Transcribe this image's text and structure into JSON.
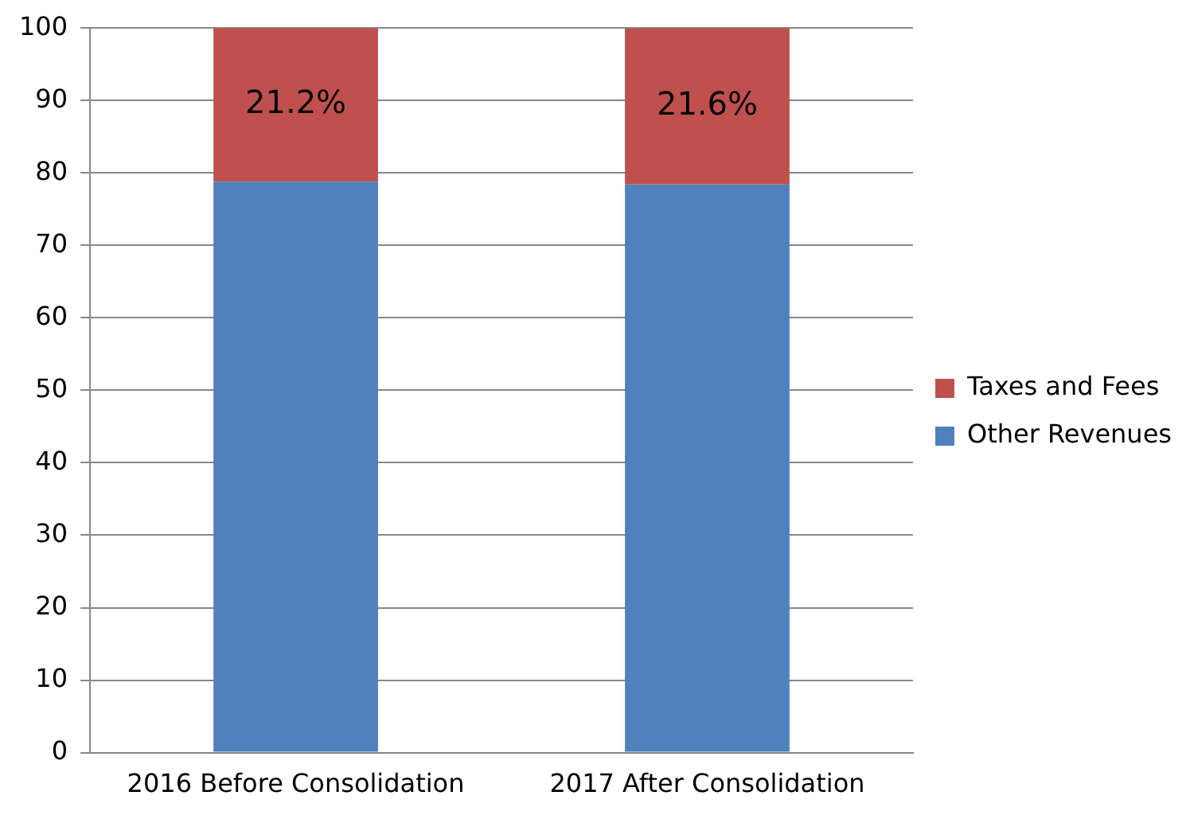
{
  "chart_data": {
    "type": "bar",
    "stacked": true,
    "categories": [
      "2016 Before Consolidation",
      "2017 After Consolidation"
    ],
    "series": [
      {
        "name": "Other Revenues",
        "color": "#4f81bd",
        "values": [
          78.8,
          78.4
        ]
      },
      {
        "name": "Taxes and Fees",
        "color": "#c0504d",
        "values": [
          21.2,
          21.6
        ],
        "value_labels": [
          "21.2%",
          "21.6%"
        ]
      }
    ],
    "ylim": [
      0,
      100
    ],
    "yticks": [
      0,
      10,
      20,
      30,
      40,
      50,
      60,
      70,
      80,
      90,
      100
    ],
    "grid": "y",
    "legend": "right"
  }
}
